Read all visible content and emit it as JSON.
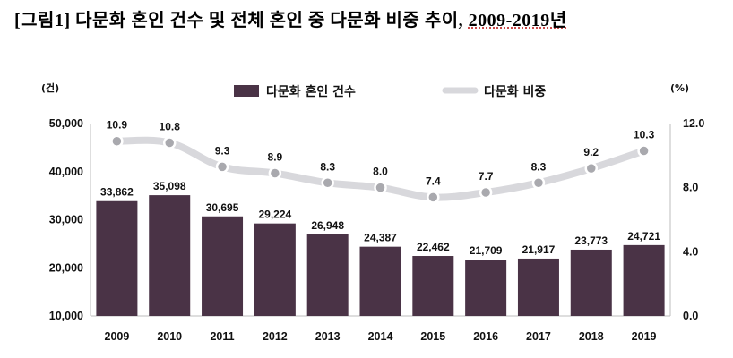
{
  "title": {
    "main": "[그림1] 다문화 혼인 건수 및 전체 혼인 중 다문화 비중 추이, ",
    "period": "2009-2019년"
  },
  "chart_data": {
    "type": "bar",
    "title": "[그림1] 다문화 혼인 건수 및 전체 혼인 중 다문화 비중 추이, 2009-2019년",
    "categories": [
      "2009",
      "2010",
      "2011",
      "2012",
      "2013",
      "2014",
      "2015",
      "2016",
      "2017",
      "2018",
      "2019"
    ],
    "series": [
      {
        "name": "다문화 혼인 건수",
        "type": "bar",
        "axis": "left",
        "values": [
          33862,
          35098,
          30695,
          29224,
          26948,
          24387,
          22462,
          21709,
          21917,
          23773,
          24721
        ],
        "labels": [
          "33,862",
          "35,098",
          "30,695",
          "29,224",
          "26,948",
          "24,387",
          "22,462",
          "21,709",
          "21,917",
          "23,773",
          "24,721"
        ],
        "color": "#4a3346"
      },
      {
        "name": "다문화 비중",
        "type": "line",
        "axis": "right",
        "values": [
          10.9,
          10.8,
          9.3,
          8.9,
          8.3,
          8.0,
          7.4,
          7.7,
          8.3,
          9.2,
          10.3
        ],
        "labels": [
          "10.9",
          "10.8",
          "9.3",
          "8.9",
          "8.3",
          "8.0",
          "7.4",
          "7.7",
          "8.3",
          "9.2",
          "10.3"
        ],
        "color": "#d8d8dc"
      }
    ],
    "y_left": {
      "unit": "(건)",
      "ylim": [
        10000,
        50000
      ],
      "ticks": [
        10000,
        20000,
        30000,
        40000,
        50000
      ],
      "tick_labels": [
        "10,000",
        "20,000",
        "30,000",
        "40,000",
        "50,000"
      ]
    },
    "y_right": {
      "unit": "(%)",
      "ylim": [
        0,
        12
      ],
      "ticks": [
        0,
        4,
        8,
        12
      ],
      "tick_labels": [
        "0.0",
        "4.0",
        "8.0",
        "12.0"
      ]
    },
    "grid": false,
    "legend": "top-center"
  }
}
